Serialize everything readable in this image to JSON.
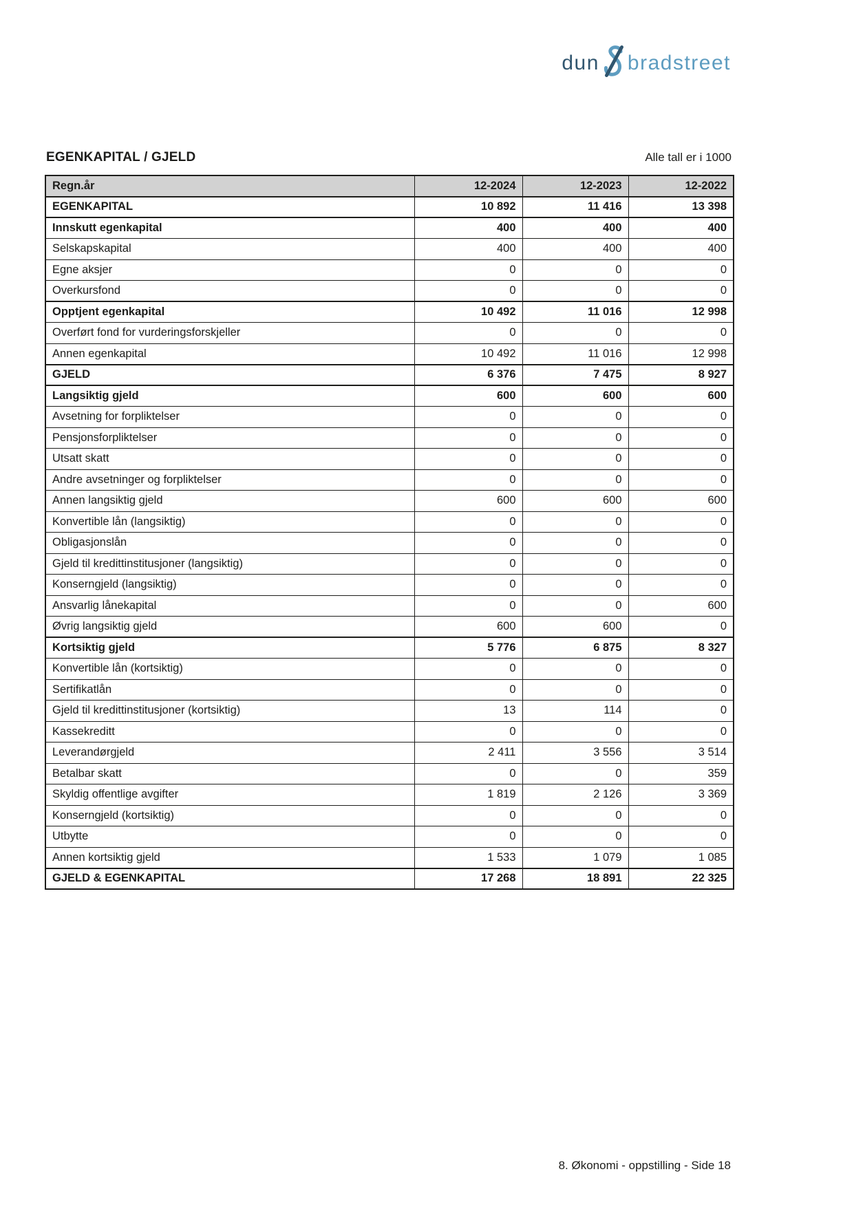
{
  "logo": {
    "word1": "dun",
    "amp": "&",
    "word2": "bradstreet",
    "dark_color": "#31566f",
    "light_color": "#5d9cc0"
  },
  "header": {
    "title": "EGENKAPITAL / GJELD",
    "note": "Alle tall er i 1000"
  },
  "table": {
    "columns": {
      "label": "Regn.år",
      "years": [
        "12-2024",
        "12-2023",
        "12-2022"
      ]
    },
    "rows": [
      {
        "label": "EGENKAPITAL",
        "values": [
          "10 892",
          "11 416",
          "13 398"
        ],
        "bold": true,
        "section": true
      },
      {
        "label": "Innskutt egenkapital",
        "values": [
          "400",
          "400",
          "400"
        ],
        "bold": true,
        "section": true
      },
      {
        "label": "Selskapskapital",
        "values": [
          "400",
          "400",
          "400"
        ],
        "bold": false,
        "section": false
      },
      {
        "label": "Egne aksjer",
        "values": [
          "0",
          "0",
          "0"
        ],
        "bold": false,
        "section": false
      },
      {
        "label": "Overkursfond",
        "values": [
          "0",
          "0",
          "0"
        ],
        "bold": false,
        "section": false
      },
      {
        "label": "Opptjent egenkapital",
        "values": [
          "10 492",
          "11 016",
          "12 998"
        ],
        "bold": true,
        "section": true
      },
      {
        "label": "Overført fond for vurderingsforskjeller",
        "values": [
          "0",
          "0",
          "0"
        ],
        "bold": false,
        "section": false
      },
      {
        "label": "Annen egenkapital",
        "values": [
          "10 492",
          "11 016",
          "12 998"
        ],
        "bold": false,
        "section": false
      },
      {
        "label": "GJELD",
        "values": [
          "6 376",
          "7 475",
          "8 927"
        ],
        "bold": true,
        "section": true
      },
      {
        "label": "Langsiktig gjeld",
        "values": [
          "600",
          "600",
          "600"
        ],
        "bold": true,
        "section": true
      },
      {
        "label": "Avsetning for forpliktelser",
        "values": [
          "0",
          "0",
          "0"
        ],
        "bold": false,
        "section": false
      },
      {
        "label": "Pensjonsforpliktelser",
        "values": [
          "0",
          "0",
          "0"
        ],
        "bold": false,
        "section": false
      },
      {
        "label": "Utsatt skatt",
        "values": [
          "0",
          "0",
          "0"
        ],
        "bold": false,
        "section": false
      },
      {
        "label": "Andre avsetninger og forpliktelser",
        "values": [
          "0",
          "0",
          "0"
        ],
        "bold": false,
        "section": false
      },
      {
        "label": "Annen langsiktig gjeld",
        "values": [
          "600",
          "600",
          "600"
        ],
        "bold": false,
        "section": false
      },
      {
        "label": "Konvertible lån (langsiktig)",
        "values": [
          "0",
          "0",
          "0"
        ],
        "bold": false,
        "section": false
      },
      {
        "label": "Obligasjonslån",
        "values": [
          "0",
          "0",
          "0"
        ],
        "bold": false,
        "section": false
      },
      {
        "label": "Gjeld til kredittinstitusjoner (langsiktig)",
        "values": [
          "0",
          "0",
          "0"
        ],
        "bold": false,
        "section": false
      },
      {
        "label": "Konserngjeld (langsiktig)",
        "values": [
          "0",
          "0",
          "0"
        ],
        "bold": false,
        "section": false
      },
      {
        "label": "Ansvarlig lånekapital",
        "values": [
          "0",
          "0",
          "600"
        ],
        "bold": false,
        "section": false
      },
      {
        "label": "Øvrig langsiktig gjeld",
        "values": [
          "600",
          "600",
          "0"
        ],
        "bold": false,
        "section": false
      },
      {
        "label": "Kortsiktig gjeld",
        "values": [
          "5 776",
          "6 875",
          "8 327"
        ],
        "bold": true,
        "section": true
      },
      {
        "label": "Konvertible lån (kortsiktig)",
        "values": [
          "0",
          "0",
          "0"
        ],
        "bold": false,
        "section": false
      },
      {
        "label": "Sertifikatlån",
        "values": [
          "0",
          "0",
          "0"
        ],
        "bold": false,
        "section": false
      },
      {
        "label": "Gjeld til kredittinstitusjoner (kortsiktig)",
        "values": [
          "13",
          "114",
          "0"
        ],
        "bold": false,
        "section": false
      },
      {
        "label": "Kassekreditt",
        "values": [
          "0",
          "0",
          "0"
        ],
        "bold": false,
        "section": false
      },
      {
        "label": "Leverandørgjeld",
        "values": [
          "2 411",
          "3 556",
          "3 514"
        ],
        "bold": false,
        "section": false
      },
      {
        "label": "Betalbar skatt",
        "values": [
          "0",
          "0",
          "359"
        ],
        "bold": false,
        "section": false
      },
      {
        "label": "Skyldig offentlige avgifter",
        "values": [
          "1 819",
          "2 126",
          "3 369"
        ],
        "bold": false,
        "section": false
      },
      {
        "label": "Konserngjeld (kortsiktig)",
        "values": [
          "0",
          "0",
          "0"
        ],
        "bold": false,
        "section": false
      },
      {
        "label": "Utbytte",
        "values": [
          "0",
          "0",
          "0"
        ],
        "bold": false,
        "section": false
      },
      {
        "label": "Annen kortsiktig gjeld",
        "values": [
          "1 533",
          "1 079",
          "1 085"
        ],
        "bold": false,
        "section": false
      },
      {
        "label": "GJELD & EGENKAPITAL",
        "values": [
          "17 268",
          "18 891",
          "22 325"
        ],
        "bold": true,
        "section": true
      }
    ]
  },
  "footer": {
    "text": "8. Økonomi - oppstilling - Side 18"
  },
  "colors": {
    "header_bg": "#d2d2d2",
    "border": "#1d1d1b",
    "text": "#1d1d1b"
  }
}
